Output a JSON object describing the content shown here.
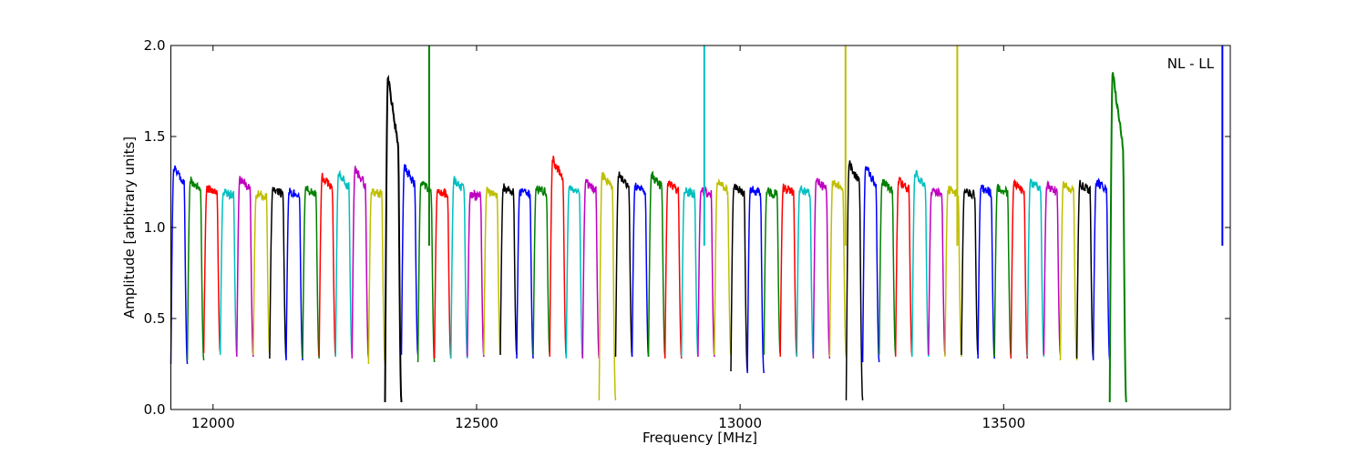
{
  "chart_data": {
    "type": "line",
    "title": "",
    "xlabel": "Frequency [MHz]",
    "ylabel": "Amplitude [arbitrary units]",
    "annotation": "NL - LL",
    "xlim": [
      11920,
      13930
    ],
    "ylim": [
      0.0,
      2.0
    ],
    "xticks": [
      12000,
      12500,
      13000,
      13500
    ],
    "yticks": [
      0.0,
      0.5,
      1.0,
      1.5,
      2.0
    ],
    "xtick_labels": [
      "12000",
      "12500",
      "13000",
      "13500"
    ],
    "ytick_labels": [
      "0.0",
      "0.5",
      "1.0",
      "1.5",
      "2.0"
    ],
    "grid": false,
    "legend": false,
    "subband_width_mhz": 31.25,
    "color_cycle": [
      "#0000ff",
      "#008000",
      "#ff0000",
      "#00bfbf",
      "#bf00bf",
      "#bfbf00",
      "#000000"
    ],
    "subband_peaks": [
      1.33,
      1.26,
      1.21,
      1.19,
      1.27,
      1.18,
      1.21,
      1.2,
      1.21,
      1.28,
      1.3,
      1.32,
      1.2,
      1.83,
      1.33,
      1.24,
      1.2,
      1.26,
      1.18,
      1.2,
      1.22,
      1.2,
      1.22,
      1.38,
      1.22,
      1.25,
      1.29,
      1.29,
      1.23,
      1.29,
      1.25,
      1.2,
      1.2,
      1.25,
      1.22,
      1.21,
      1.2,
      1.22,
      1.21,
      1.26,
      1.26,
      1.35,
      1.33,
      1.25,
      1.26,
      1.3,
      1.2,
      1.21,
      1.2,
      1.22,
      1.22,
      1.24,
      1.25,
      1.23,
      1.24,
      1.24,
      1.25,
      1.85
    ],
    "subband_dips": [
      0.25,
      0.27,
      0.31,
      0.3,
      0.29,
      0.3,
      0.28,
      0.27,
      0.28,
      0.29,
      0.29,
      0.28,
      0.25,
      0.04,
      0.3,
      0.26,
      0.28,
      0.28,
      0.29,
      0.3,
      0.3,
      0.28,
      0.3,
      0.29,
      0.28,
      0.28,
      0.05,
      0.29,
      0.29,
      0.29,
      0.28,
      0.29,
      0.29,
      0.3,
      0.21,
      0.2,
      0.3,
      0.29,
      0.29,
      0.28,
      0.29,
      0.05,
      0.26,
      0.3,
      0.29,
      0.29,
      0.3,
      0.29,
      0.3,
      0.28,
      0.29,
      0.28,
      0.29,
      0.3,
      0.27,
      0.28,
      0.27,
      0.04
    ],
    "rfi_spikes": [
      {
        "x": 12410,
        "y": 2.0,
        "color": "#008000"
      },
      {
        "x": 12932,
        "y": 2.0,
        "color": "#00bfbf"
      },
      {
        "x": 13200,
        "y": 2.0,
        "color": "#bfbf00"
      },
      {
        "x": 13412,
        "y": 2.0,
        "color": "#bfbf00"
      },
      {
        "x": 13915,
        "y": 2.0,
        "color": "#0000ff"
      }
    ]
  }
}
